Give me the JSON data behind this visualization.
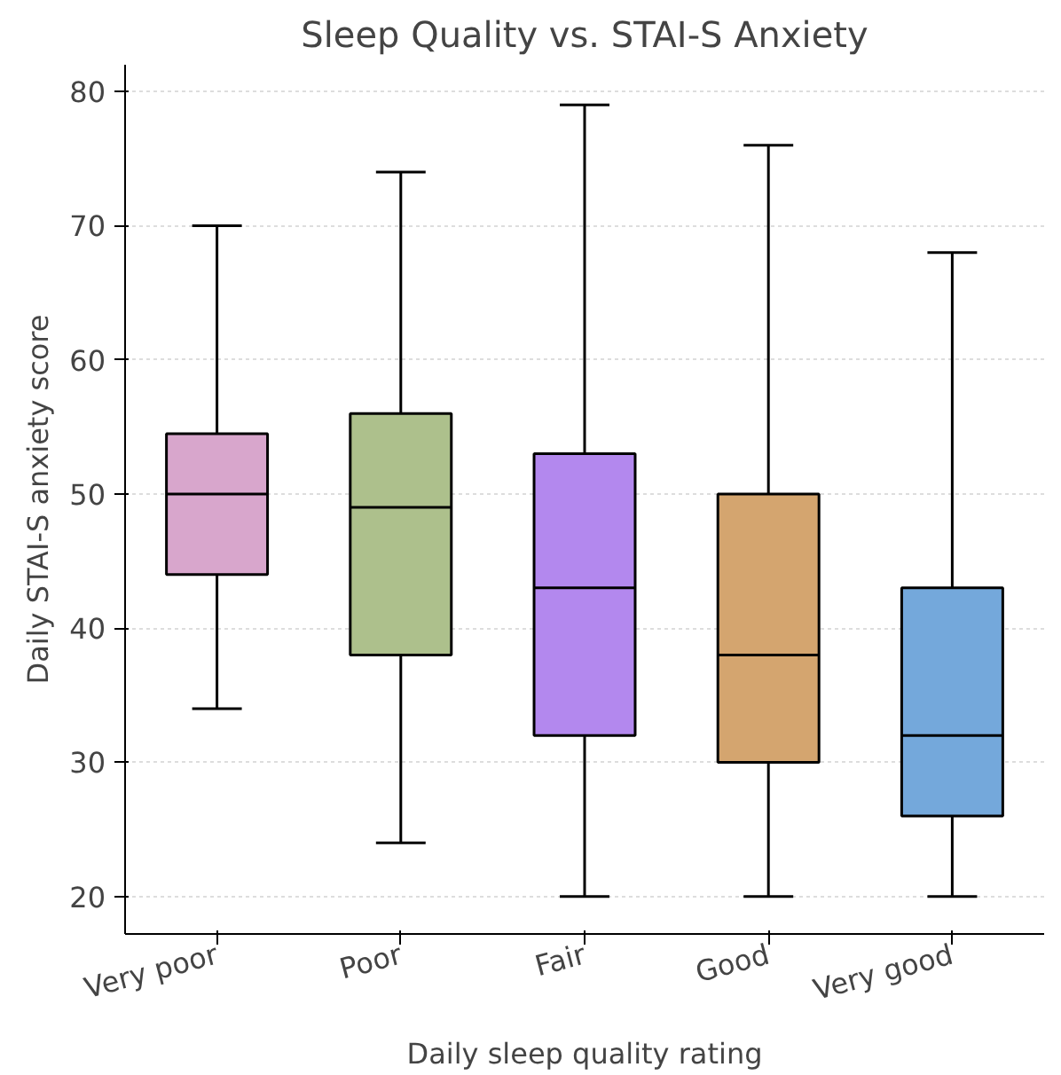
{
  "chart_data": {
    "type": "box",
    "title": "Sleep Quality vs. STAI-S Anxiety",
    "xlabel": "Daily sleep quality rating",
    "ylabel": "Daily STAI-S anxiety score",
    "categories": [
      "Very poor",
      "Poor",
      "Fair",
      "Good",
      "Very good"
    ],
    "colors": [
      "#d8a6cc",
      "#adc08c",
      "#b388ee",
      "#d4a56f",
      "#74a8db"
    ],
    "boxes": [
      {
        "low": 34,
        "q1": 44,
        "median": 50,
        "q3": 54.5,
        "high": 70
      },
      {
        "low": 24,
        "q1": 38,
        "median": 49,
        "q3": 56,
        "high": 74
      },
      {
        "low": 20,
        "q1": 32,
        "median": 43,
        "q3": 53,
        "high": 79
      },
      {
        "low": 20,
        "q1": 30,
        "median": 38,
        "q3": 50,
        "high": 76
      },
      {
        "low": 20,
        "q1": 26,
        "median": 32,
        "q3": 43,
        "high": 68
      }
    ],
    "ylim": [
      17.2,
      82
    ],
    "yticks": [
      20,
      30,
      40,
      50,
      60,
      70,
      80
    ],
    "grid": "y"
  }
}
